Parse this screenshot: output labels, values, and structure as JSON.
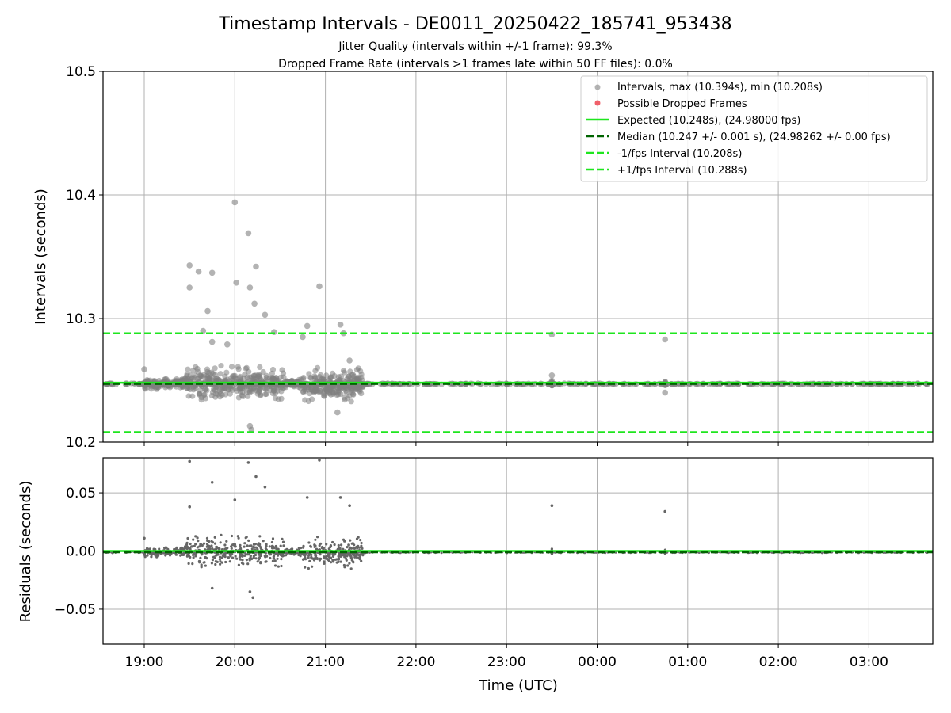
{
  "chart_data": {
    "title": "Timestamp Intervals - DE0011_20250422_185741_953438",
    "subtitle_lines": [
      "Jitter Quality (intervals within +/-1 frame): 99.3%",
      "Dropped Frame Rate (intervals >1 frames late within 50 FF files): 0.0%"
    ],
    "xlabel": "Time (UTC)",
    "x_ticks": [
      "19:00",
      "20:00",
      "21:00",
      "22:00",
      "23:00",
      "00:00",
      "01:00",
      "02:00",
      "03:00"
    ],
    "grid": true,
    "charts": [
      {
        "type": "scatter",
        "ylabel": "Intervals (seconds)",
        "ylim": [
          10.2,
          10.5
        ],
        "y_ticks": [
          "10.2",
          "10.3",
          "10.4",
          "10.5"
        ],
        "legend_position": "top-right",
        "legend": [
          "Intervals, max (10.394s), min (10.208s)",
          "Possible Dropped Frames",
          "Expected (10.248s), (24.98000 fps)",
          "Median (10.247 +/- 0.001 s), (24.98262 +/- 0.00 fps)",
          "-1/fps Interval (10.208s)",
          "+1/fps Interval (10.288s)"
        ],
        "reference_lines": {
          "expected": 10.248,
          "median": 10.247,
          "minus_one_fps": 10.208,
          "plus_one_fps": 10.288
        },
        "notable_points": [
          {
            "x": "19:00",
            "y": 10.259
          },
          {
            "x": "19:30",
            "y": 10.343
          },
          {
            "x": "19:30",
            "y": 10.325
          },
          {
            "x": "19:36",
            "y": 10.338
          },
          {
            "x": "19:39",
            "y": 10.29
          },
          {
            "x": "19:42",
            "y": 10.306
          },
          {
            "x": "19:45",
            "y": 10.337
          },
          {
            "x": "19:45",
            "y": 10.281
          },
          {
            "x": "19:55",
            "y": 10.279
          },
          {
            "x": "20:00",
            "y": 10.394
          },
          {
            "x": "20:01",
            "y": 10.329
          },
          {
            "x": "20:09",
            "y": 10.369
          },
          {
            "x": "20:10",
            "y": 10.325
          },
          {
            "x": "20:13",
            "y": 10.312
          },
          {
            "x": "20:14",
            "y": 10.342
          },
          {
            "x": "20:20",
            "y": 10.303
          },
          {
            "x": "20:26",
            "y": 10.289
          },
          {
            "x": "20:45",
            "y": 10.285
          },
          {
            "x": "20:48",
            "y": 10.294
          },
          {
            "x": "20:56",
            "y": 10.326
          },
          {
            "x": "21:10",
            "y": 10.295
          },
          {
            "x": "21:12",
            "y": 10.288
          },
          {
            "x": "21:16",
            "y": 10.266
          },
          {
            "x": "23:30",
            "y": 10.287
          },
          {
            "x": "23:30",
            "y": 10.254
          },
          {
            "x": "00:45",
            "y": 10.283
          },
          {
            "x": "00:45",
            "y": 10.24
          },
          {
            "x": "20:10",
            "y": 10.213
          },
          {
            "x": "20:11",
            "y": 10.21
          },
          {
            "x": "21:08",
            "y": 10.224
          }
        ]
      },
      {
        "type": "scatter",
        "ylabel": "Residuals (seconds)",
        "ylim": [
          -0.08,
          0.08
        ],
        "y_ticks": [
          "−0.05",
          "0.00",
          "0.05"
        ],
        "reference_lines": {
          "expected": 0.0,
          "median": -0.001
        },
        "notable_points": [
          {
            "x": "19:00",
            "y": 0.011
          },
          {
            "x": "19:30",
            "y": 0.077
          },
          {
            "x": "19:30",
            "y": 0.038
          },
          {
            "x": "19:45",
            "y": 0.059
          },
          {
            "x": "20:00",
            "y": 0.044
          },
          {
            "x": "20:09",
            "y": 0.076
          },
          {
            "x": "20:14",
            "y": 0.064
          },
          {
            "x": "20:20",
            "y": 0.055
          },
          {
            "x": "20:56",
            "y": 0.078
          },
          {
            "x": "20:48",
            "y": 0.046
          },
          {
            "x": "21:10",
            "y": 0.046
          },
          {
            "x": "21:16",
            "y": 0.039
          },
          {
            "x": "23:30",
            "y": 0.039
          },
          {
            "x": "00:45",
            "y": 0.034
          },
          {
            "x": "20:10",
            "y": -0.035
          },
          {
            "x": "20:12",
            "y": -0.04
          },
          {
            "x": "19:45",
            "y": -0.032
          }
        ]
      }
    ]
  },
  "colors": {
    "scatter": "#808080",
    "dropped": "#f0606a",
    "expected": "#1ee61e",
    "median": "#006400",
    "fps_interval": "#1ee61e",
    "grid": "#b0b0b0"
  }
}
